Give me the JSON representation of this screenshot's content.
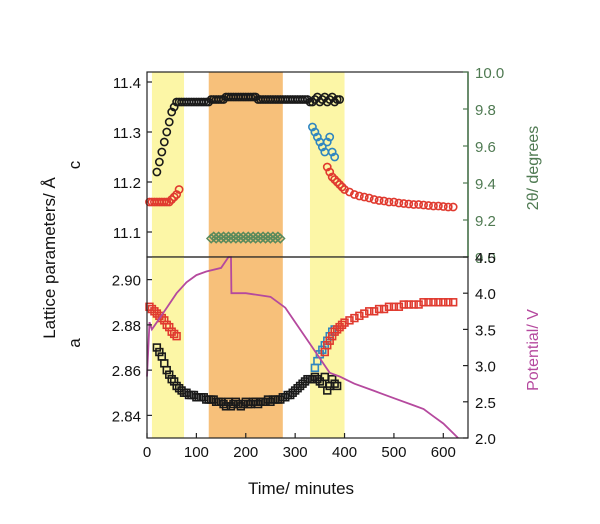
{
  "figure": {
    "y_label": "Lattice parameters/ Å",
    "x_label": "Time/ minutes"
  },
  "colors": {
    "yellow_band": "#fcf6a6",
    "orange_band": "#f7c07a",
    "black_marker": "#1a1a1a",
    "red_marker": "#e03a2f",
    "blue_marker": "#2f86c0",
    "green_marker": "#5a8a5c",
    "potential_line": "#b5499e",
    "right_top_axis": "#4f7a52",
    "right_bottom_axis": "#b5499e"
  },
  "chart_data": [
    {
      "type": "scatter",
      "panel": "top",
      "left_axis_label": "c",
      "right_axis_label": "2θ/ degrees",
      "xlim": [
        0,
        650
      ],
      "ylim_left": [
        11.05,
        11.42
      ],
      "ylim_right": [
        9.0,
        10.0
      ],
      "y_ticks_left": [
        "11.1",
        "11.2",
        "11.3",
        "11.4"
      ],
      "y_ticks_right": [
        "9.0",
        "9.2",
        "9.4",
        "9.6",
        "9.8",
        "10.0"
      ],
      "shaded_regions": [
        {
          "x": [
            10,
            75
          ],
          "color": "yellow"
        },
        {
          "x": [
            125,
            275
          ],
          "color": "orange"
        },
        {
          "x": [
            330,
            400
          ],
          "color": "yellow"
        }
      ],
      "series": [
        {
          "marker": "circle",
          "color": "black",
          "axis": "left",
          "x": [
            20,
            25,
            30,
            35,
            40,
            45,
            50,
            55,
            60,
            65,
            70,
            75,
            80,
            85,
            90,
            95,
            100,
            105,
            110,
            115,
            120,
            125,
            130,
            135,
            140,
            145,
            150,
            155,
            160,
            165,
            170,
            175,
            180,
            185,
            190,
            195,
            200,
            205,
            210,
            215,
            220,
            225,
            230,
            235,
            240,
            245,
            250,
            255,
            260,
            265,
            270,
            275,
            280,
            285,
            290,
            295,
            300,
            305,
            310,
            315,
            320,
            325,
            330,
            335,
            340,
            345,
            350,
            355,
            360,
            365,
            370,
            375,
            380,
            385,
            390
          ],
          "y": [
            11.22,
            11.24,
            11.26,
            11.28,
            11.3,
            11.32,
            11.34,
            11.35,
            11.36,
            11.36,
            11.36,
            11.36,
            11.36,
            11.36,
            11.36,
            11.36,
            11.36,
            11.36,
            11.36,
            11.36,
            11.36,
            11.36,
            11.365,
            11.365,
            11.365,
            11.365,
            11.365,
            11.365,
            11.37,
            11.37,
            11.37,
            11.37,
            11.37,
            11.37,
            11.37,
            11.37,
            11.37,
            11.37,
            11.37,
            11.37,
            11.37,
            11.365,
            11.365,
            11.365,
            11.365,
            11.365,
            11.365,
            11.365,
            11.365,
            11.365,
            11.365,
            11.365,
            11.365,
            11.365,
            11.365,
            11.365,
            11.365,
            11.365,
            11.365,
            11.365,
            11.365,
            11.365,
            11.36,
            11.36,
            11.365,
            11.37,
            11.36,
            11.365,
            11.37,
            11.36,
            11.365,
            11.37,
            11.36,
            11.365,
            11.365
          ]
        },
        {
          "marker": "circle",
          "color": "red",
          "axis": "left",
          "x": [
            5,
            10,
            15,
            20,
            25,
            30,
            35,
            40,
            45,
            50,
            55,
            60,
            65
          ],
          "y": [
            11.16,
            11.16,
            11.16,
            11.16,
            11.16,
            11.16,
            11.16,
            11.16,
            11.16,
            11.165,
            11.17,
            11.175,
            11.185
          ]
        },
        {
          "marker": "circle",
          "color": "blue",
          "axis": "left",
          "x": [
            335,
            340,
            345,
            350,
            355,
            360,
            365,
            370,
            375,
            380
          ],
          "y": [
            11.31,
            11.3,
            11.29,
            11.28,
            11.27,
            11.26,
            11.28,
            11.29,
            11.26,
            11.25
          ]
        },
        {
          "marker": "circle",
          "color": "red",
          "axis": "left",
          "x": [
            365,
            370,
            375,
            380,
            385,
            390,
            395,
            400,
            410,
            420,
            430,
            440,
            450,
            460,
            470,
            480,
            490,
            500,
            510,
            520,
            530,
            540,
            550,
            560,
            570,
            580,
            590,
            600,
            610,
            620
          ],
          "y": [
            11.23,
            11.22,
            11.21,
            11.205,
            11.2,
            11.195,
            11.19,
            11.185,
            11.18,
            11.175,
            11.172,
            11.17,
            11.168,
            11.165,
            11.163,
            11.162,
            11.16,
            11.16,
            11.158,
            11.157,
            11.156,
            11.155,
            11.155,
            11.154,
            11.153,
            11.152,
            11.152,
            11.151,
            11.15,
            11.15
          ]
        },
        {
          "marker": "diamond",
          "color": "green",
          "axis": "right",
          "x": [
            130,
            135,
            140,
            145,
            150,
            155,
            160,
            165,
            170,
            175,
            180,
            185,
            190,
            195,
            200,
            205,
            210,
            215,
            220,
            225,
            230,
            235,
            240,
            245,
            250,
            255,
            260,
            265,
            270
          ],
          "y": [
            9.1,
            9.11,
            9.1,
            9.11,
            9.1,
            9.11,
            9.1,
            9.11,
            9.1,
            9.11,
            9.1,
            9.11,
            9.1,
            9.11,
            9.1,
            9.11,
            9.1,
            9.11,
            9.1,
            9.11,
            9.1,
            9.11,
            9.1,
            9.11,
            9.1,
            9.11,
            9.1,
            9.11,
            9.1
          ]
        }
      ]
    },
    {
      "type": "scatter",
      "panel": "bottom",
      "left_axis_label": "a",
      "right_axis_label": "Potential/ V",
      "xlim": [
        0,
        650
      ],
      "ylim_left": [
        2.83,
        2.91
      ],
      "ylim_right": [
        2.0,
        4.5
      ],
      "x_ticks": [
        "0",
        "100",
        "200",
        "300",
        "400",
        "500",
        "600"
      ],
      "y_ticks_left": [
        "2.84",
        "2.86",
        "2.88",
        "2.90"
      ],
      "y_ticks_right": [
        "2.0",
        "2.5",
        "3.0",
        "3.5",
        "4.0",
        "4.5"
      ],
      "shaded_regions": [
        {
          "x": [
            10,
            75
          ],
          "color": "yellow"
        },
        {
          "x": [
            125,
            275
          ],
          "color": "orange"
        },
        {
          "x": [
            330,
            400
          ],
          "color": "yellow"
        }
      ],
      "series": [
        {
          "marker": "square",
          "color": "red",
          "axis": "left",
          "x": [
            5,
            10,
            15,
            20,
            25,
            30,
            35,
            40,
            45,
            50,
            55,
            60
          ],
          "y": [
            2.888,
            2.887,
            2.886,
            2.885,
            2.884,
            2.883,
            2.882,
            2.88,
            2.879,
            2.877,
            2.876,
            2.875
          ]
        },
        {
          "marker": "square",
          "color": "black",
          "axis": "left",
          "x": [
            20,
            25,
            30,
            35,
            40,
            45,
            50,
            55,
            60,
            65,
            70,
            75,
            80,
            85,
            90,
            95,
            100,
            105,
            110,
            115,
            120,
            125,
            130,
            135,
            140,
            145,
            150,
            155,
            160,
            165,
            170,
            175,
            180,
            185,
            190,
            195,
            200,
            205,
            210,
            215,
            220,
            225,
            230,
            235,
            240,
            245,
            250,
            255,
            260,
            265,
            270,
            275,
            280,
            285,
            290,
            295,
            300,
            305,
            310,
            315,
            320,
            325,
            330,
            335,
            340,
            345,
            350,
            355,
            360,
            365,
            370,
            375,
            380,
            385
          ],
          "y": [
            2.87,
            2.868,
            2.866,
            2.863,
            2.86,
            2.858,
            2.856,
            2.855,
            2.853,
            2.852,
            2.851,
            2.85,
            2.85,
            2.849,
            2.849,
            2.849,
            2.848,
            2.848,
            2.848,
            2.848,
            2.847,
            2.847,
            2.847,
            2.847,
            2.846,
            2.846,
            2.846,
            2.845,
            2.844,
            2.846,
            2.844,
            2.845,
            2.846,
            2.845,
            2.844,
            2.845,
            2.846,
            2.845,
            2.845,
            2.846,
            2.846,
            2.845,
            2.846,
            2.846,
            2.846,
            2.847,
            2.846,
            2.847,
            2.847,
            2.847,
            2.847,
            2.848,
            2.848,
            2.849,
            2.849,
            2.85,
            2.851,
            2.852,
            2.853,
            2.854,
            2.855,
            2.856,
            2.856,
            2.856,
            2.857,
            2.856,
            2.855,
            2.854,
            2.857,
            2.851,
            2.853,
            2.856,
            2.854,
            2.853
          ]
        },
        {
          "marker": "square",
          "color": "blue",
          "axis": "left",
          "x": [
            340,
            345,
            350,
            355,
            360,
            365,
            370,
            375,
            380
          ],
          "y": [
            2.861,
            2.864,
            2.867,
            2.869,
            2.871,
            2.873,
            2.875,
            2.877,
            2.878
          ]
        },
        {
          "marker": "square",
          "color": "red",
          "axis": "left",
          "x": [
            360,
            365,
            370,
            375,
            380,
            385,
            390,
            395,
            400,
            410,
            420,
            430,
            440,
            450,
            460,
            470,
            480,
            490,
            500,
            510,
            520,
            530,
            540,
            550,
            560,
            570,
            580,
            590,
            600,
            610,
            620
          ],
          "y": [
            2.868,
            2.871,
            2.873,
            2.875,
            2.877,
            2.878,
            2.879,
            2.88,
            2.881,
            2.882,
            2.883,
            2.884,
            2.885,
            2.886,
            2.886,
            2.887,
            2.887,
            2.888,
            2.888,
            2.888,
            2.889,
            2.889,
            2.889,
            2.889,
            2.89,
            2.89,
            2.89,
            2.89,
            2.89,
            2.89,
            2.89
          ]
        },
        {
          "marker": "line",
          "color": "magenta",
          "axis": "right",
          "name": "Potential",
          "x": [
            0,
            5,
            10,
            20,
            40,
            60,
            80,
            100,
            120,
            150,
            165,
            170,
            171,
            200,
            250,
            280,
            300,
            330,
            360,
            370,
            390,
            420,
            460,
            500,
            540,
            560,
            570,
            580,
            600,
            630
          ],
          "y": [
            2.85,
            3.6,
            3.5,
            3.6,
            3.8,
            4.0,
            4.15,
            4.25,
            4.3,
            4.35,
            4.5,
            4.5,
            4.0,
            4.0,
            3.95,
            3.8,
            3.6,
            3.3,
            3.0,
            2.9,
            2.85,
            2.75,
            2.65,
            2.55,
            2.45,
            2.4,
            2.35,
            2.3,
            2.2,
            2.0
          ]
        }
      ]
    }
  ]
}
